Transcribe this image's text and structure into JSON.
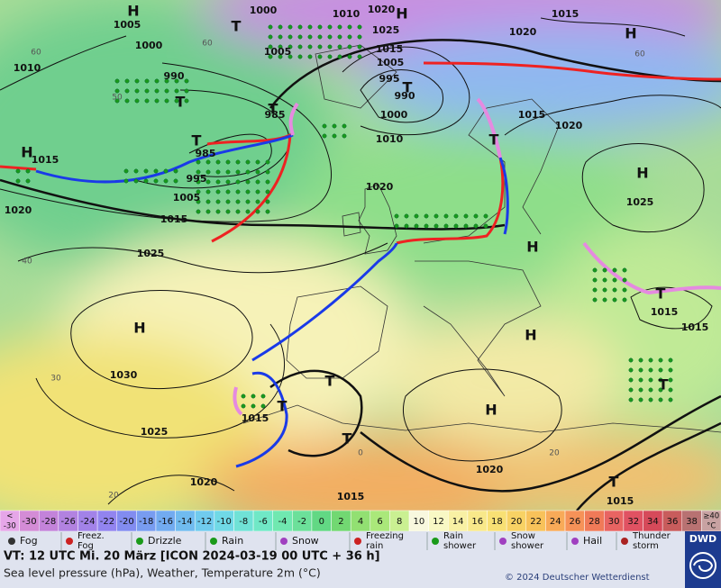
{
  "map": {
    "isobar_labels": [
      "1000",
      "1010",
      "1020",
      "1005",
      "1000",
      "1005",
      "1025",
      "1015",
      "1005",
      "1020",
      "1015",
      "1010",
      "990",
      "995",
      "990",
      "985",
      "1000",
      "1015",
      "1020",
      "1010",
      "985",
      "1015",
      "995",
      "1005",
      "1020",
      "1025",
      "1020",
      "1015",
      "1025",
      "1015",
      "1015",
      "1030",
      "1015",
      "1025",
      "1020",
      "1020",
      "1015",
      "1015"
    ],
    "pressure_centers": [
      "H",
      "H",
      "T",
      "H",
      "T",
      "T",
      "T",
      "T",
      "H",
      "T",
      "H",
      "H",
      "H",
      "T",
      "H",
      "T",
      "T",
      "H",
      "T",
      "T",
      "T"
    ],
    "grid_labels": [
      "60",
      "60",
      "60",
      "50",
      "40",
      "30",
      "20",
      "0",
      "20"
    ]
  },
  "scale": {
    "first": [
      "<",
      "-30"
    ],
    "labels": [
      "-30",
      "-28",
      "-26",
      "-24",
      "-22",
      "-20",
      "-18",
      "-16",
      "-14",
      "-12",
      "-10",
      "-8",
      "-6",
      "-4",
      "-2",
      "0",
      "2",
      "4",
      "6",
      "8",
      "10",
      "12",
      "14",
      "16",
      "18",
      "20",
      "22",
      "24",
      "26",
      "28",
      "30",
      "32",
      "34",
      "36",
      "38"
    ],
    "last": [
      "≥40",
      "°C"
    ],
    "colors": [
      "#e6a6e8",
      "#d48cd6",
      "#c383da",
      "#b282e0",
      "#a282e8",
      "#9284ef",
      "#828cf0",
      "#789cf0",
      "#72abf0",
      "#70bbef",
      "#70cbee",
      "#70d9e6",
      "#70e2d6",
      "#70e8c6",
      "#70e8b0",
      "#6ce09a",
      "#62d884",
      "#72d872",
      "#92e072",
      "#aae87a",
      "#caf092",
      "#f8f8de",
      "#f8f8c4",
      "#f8f0a4",
      "#f8e88a",
      "#f8e074",
      "#f8d264",
      "#f8c25a",
      "#f8aa58",
      "#f69258",
      "#f07a58",
      "#e86462",
      "#e05262",
      "#d64a5a",
      "#c85c5c",
      "#b87272",
      "#c8a2a2"
    ]
  },
  "legend": {
    "items": [
      [
        "Fog"
      ],
      [
        "Freez.",
        "Fog"
      ],
      [
        "Drizzle"
      ],
      [
        "Rain"
      ],
      [
        "Snow"
      ],
      [
        "Freezing",
        "rain"
      ],
      [
        "Rain",
        "shower"
      ],
      [
        "Snow",
        "shower"
      ],
      [
        "Hail"
      ],
      [
        "Thunder",
        "storm"
      ]
    ]
  },
  "footer": {
    "valid_time": "VT: 12 UTC Mi.  20 März [ICON 2024-03-19  00 UTC + 36 h]",
    "description": "Sea level pressure (hPa), Weather, Temperature 2m (°C)",
    "copyright": "© 2024 Deutscher Wetterdienst",
    "logo": "DWD"
  }
}
